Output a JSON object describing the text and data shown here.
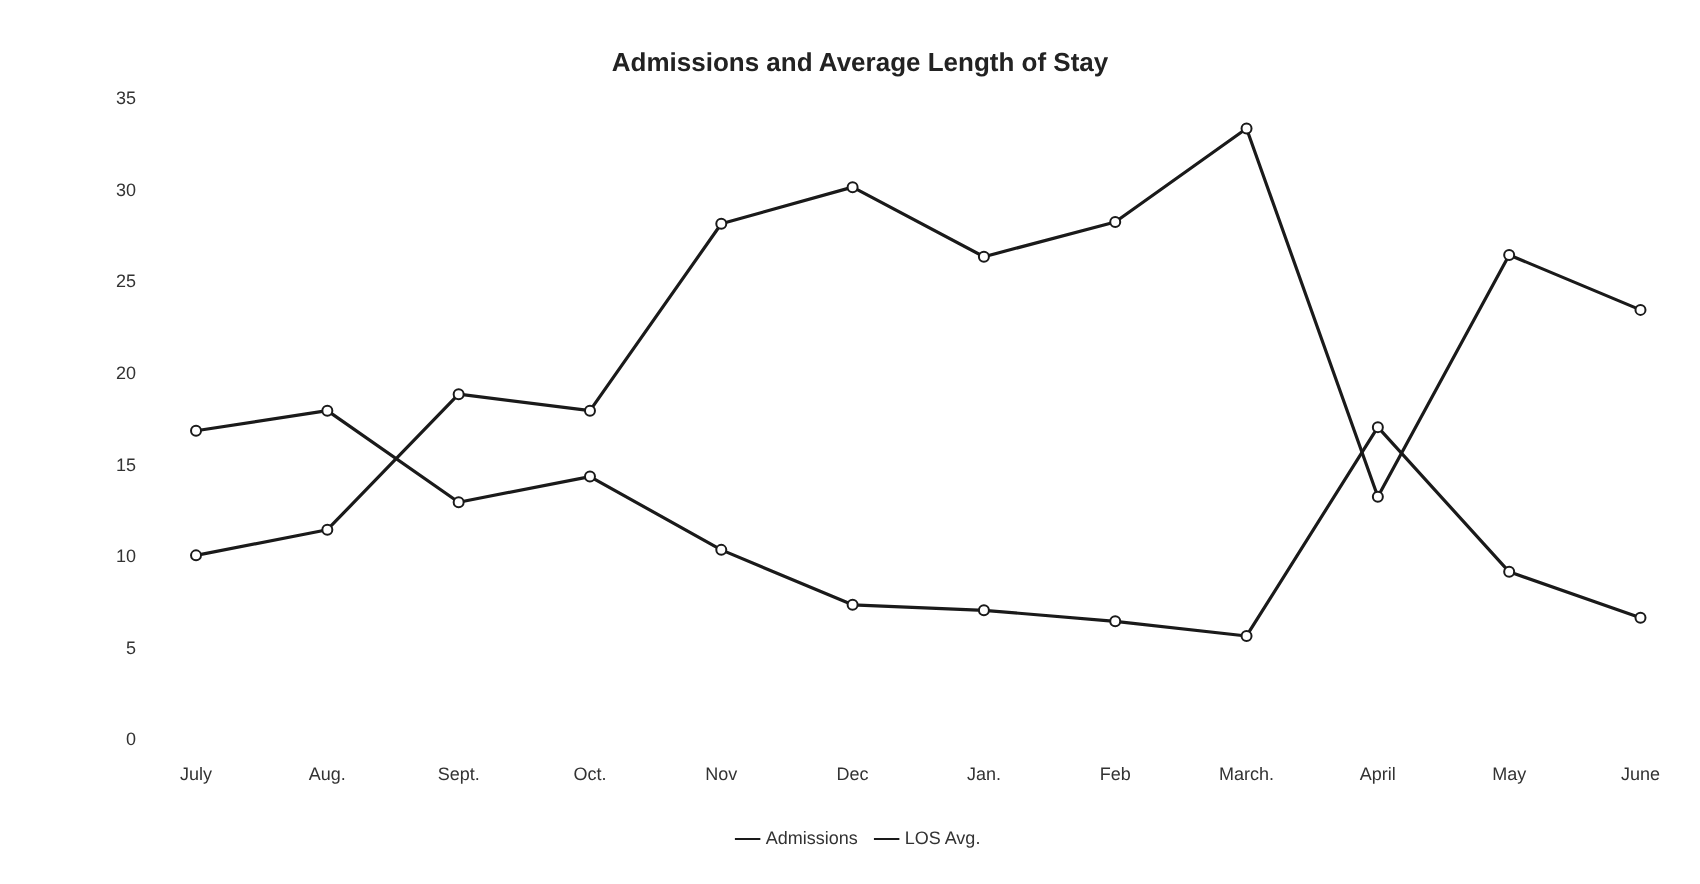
{
  "chart_data": {
    "type": "line",
    "title": "Admissions and Average Length of Stay",
    "categories": [
      "July",
      "Aug.",
      "Sept.",
      "Oct.",
      "Nov",
      "Dec",
      "Jan.",
      "Feb",
      "March.",
      "April",
      "May",
      "June"
    ],
    "series": [
      {
        "name": "Admissions",
        "color": "#1a1a1a",
        "values": [
          10.1,
          11.5,
          18.9,
          18.0,
          28.2,
          30.2,
          26.4,
          28.3,
          33.4,
          13.3,
          26.5,
          23.5
        ]
      },
      {
        "name": "LOS Avg.",
        "color": "#1a1a1a",
        "values": [
          16.9,
          18.0,
          13.0,
          14.4,
          10.4,
          7.4,
          7.1,
          6.5,
          5.7,
          17.1,
          9.2,
          6.7
        ]
      }
    ],
    "ylim": [
      0,
      35
    ],
    "yticks": [
      0,
      5,
      10,
      15,
      20,
      25,
      30,
      35
    ],
    "grid": false,
    "legend": "bottom",
    "marker": "circle",
    "line_style": "solid"
  }
}
